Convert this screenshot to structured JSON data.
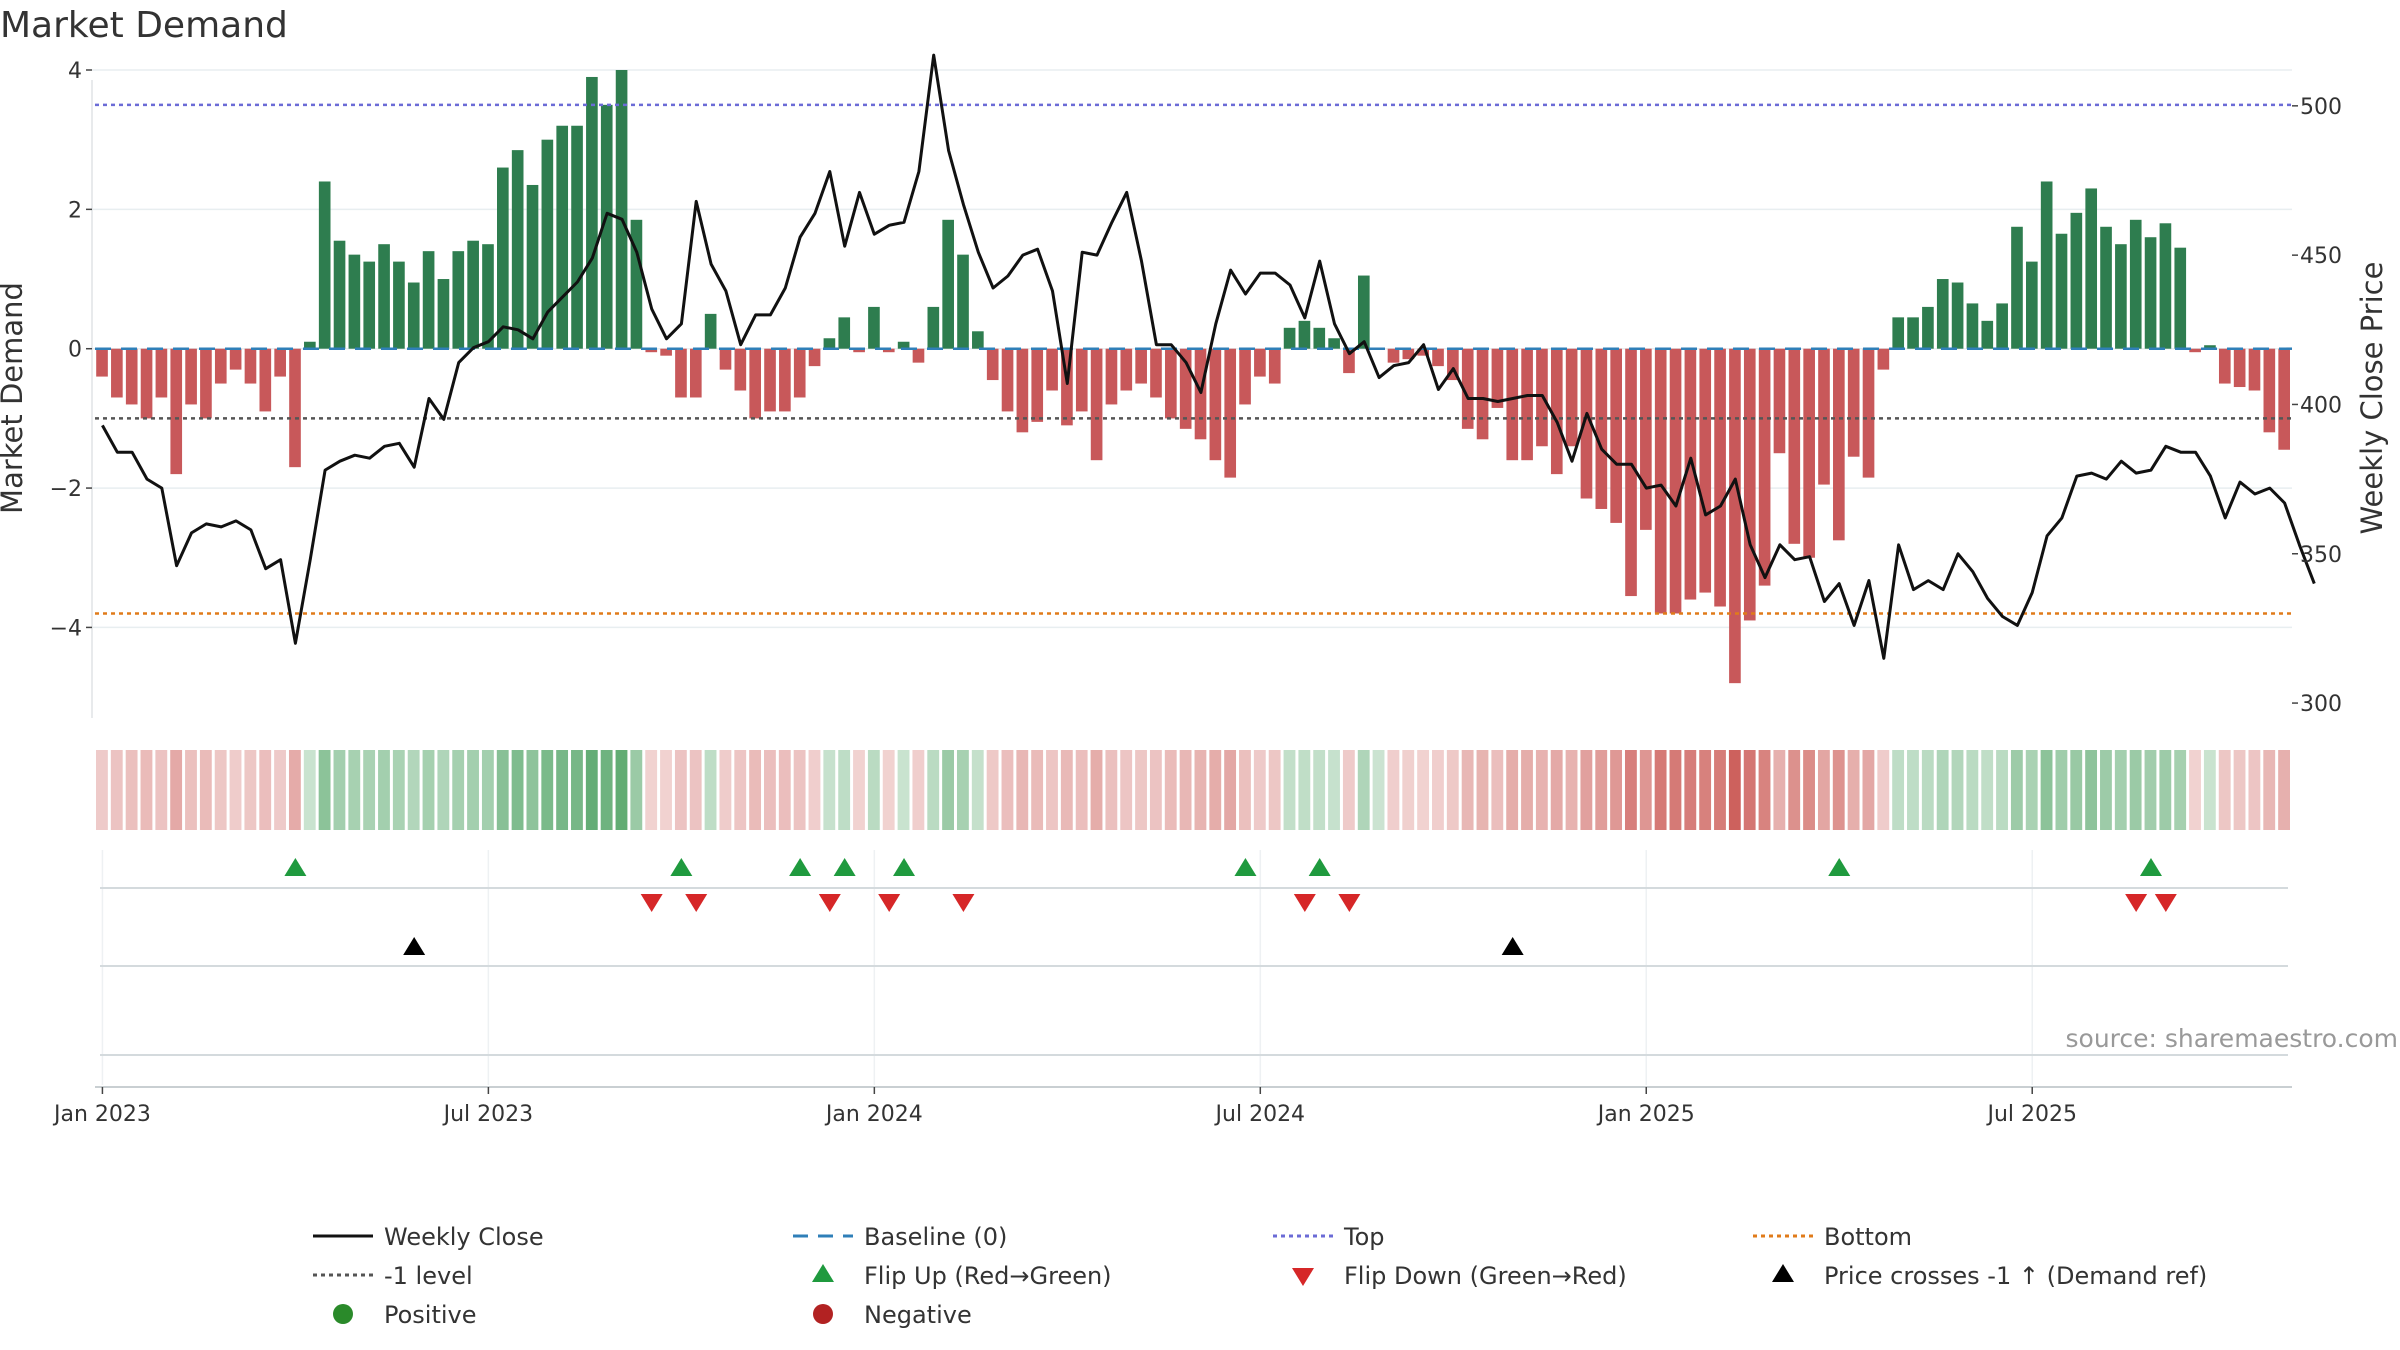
{
  "chart_data": {
    "type": "bar+line",
    "title": "Market Demand",
    "ylabel_left": "Market Demand",
    "ylabel_right": "Weekly Close Price",
    "source": "source: sharemaestro.com",
    "y_left_ticks": [
      "4",
      "2",
      "0",
      "−2",
      "−4"
    ],
    "y_left_tick_values": [
      4,
      2,
      0,
      -2,
      -4
    ],
    "y_left_range": [
      -5.3,
      4.0
    ],
    "y_right_ticks": [
      "500",
      "450",
      "400",
      "350",
      "300"
    ],
    "y_right_tick_values": [
      500,
      450,
      400,
      350,
      300
    ],
    "y_right_range": [
      295,
      512
    ],
    "x_ticks": [
      "Jan 2023",
      "Jul 2023",
      "Jan 2024",
      "Jul 2024",
      "Jan 2025",
      "Jul 2025"
    ],
    "x_tick_weeks": [
      0.5,
      26.5,
      52.5,
      78.5,
      104.5,
      130.5
    ],
    "reference_levels": {
      "top": 3.5,
      "minus_one": -1.0,
      "bottom": -3.8,
      "baseline": 0
    },
    "demand": [
      -0.4,
      -0.7,
      -0.8,
      -1.0,
      -0.7,
      -1.8,
      -0.8,
      -1.0,
      -0.5,
      -0.3,
      -0.5,
      -0.9,
      -0.4,
      -1.7,
      0.1,
      2.4,
      1.55,
      1.35,
      1.25,
      1.5,
      1.25,
      0.95,
      1.4,
      1.0,
      1.4,
      1.55,
      1.5,
      2.6,
      2.85,
      2.35,
      3.0,
      3.2,
      3.2,
      3.9,
      3.5,
      4.0,
      1.85,
      -0.05,
      -0.1,
      -0.7,
      -0.7,
      0.5,
      -0.3,
      -0.6,
      -1.0,
      -0.9,
      -0.9,
      -0.7,
      -0.25,
      0.15,
      0.45,
      -0.05,
      0.6,
      -0.05,
      0.1,
      -0.2,
      0.6,
      1.85,
      1.35,
      0.25,
      -0.45,
      -0.9,
      -1.2,
      -1.05,
      -0.6,
      -1.1,
      -0.9,
      -1.6,
      -0.8,
      -0.6,
      -0.5,
      -0.7,
      -1.0,
      -1.15,
      -1.3,
      -1.6,
      -1.85,
      -0.8,
      -0.4,
      -0.5,
      0.3,
      0.4,
      0.3,
      0.15,
      -0.35,
      1.05,
      0.0,
      -0.2,
      -0.15,
      -0.1,
      -0.25,
      -0.45,
      -1.15,
      -1.3,
      -0.85,
      -1.6,
      -1.6,
      -1.4,
      -1.8,
      -1.4,
      -2.15,
      -2.3,
      -2.5,
      -3.55,
      -2.6,
      -3.8,
      -3.8,
      -3.6,
      -3.5,
      -3.7,
      -4.8,
      -3.9,
      -3.4,
      -1.5,
      -2.8,
      -3.0,
      -1.95,
      -2.75,
      -1.55,
      -1.85,
      -0.3,
      0.45,
      0.45,
      0.6,
      1.0,
      0.95,
      0.65,
      0.4,
      0.65,
      1.75,
      1.25,
      2.4,
      1.65,
      1.95,
      2.3,
      1.75,
      1.5,
      1.85,
      1.6,
      1.8,
      1.45,
      -0.05,
      0.05,
      -0.5,
      -0.55,
      -0.6,
      -1.2,
      -1.45
    ],
    "weekly_close": [
      393,
      384,
      384,
      375,
      372,
      346,
      357,
      360,
      359,
      361,
      358,
      345,
      348,
      320,
      348,
      378,
      381,
      383,
      382,
      386,
      387,
      379,
      402,
      395,
      414,
      419,
      421,
      426,
      425,
      422,
      431,
      436,
      441,
      449,
      464,
      462,
      451,
      432,
      422,
      427,
      468,
      447,
      438,
      420,
      430,
      430,
      439,
      456,
      464,
      478,
      453,
      471,
      457,
      460,
      461,
      478,
      517,
      485,
      467,
      451,
      439,
      443,
      450,
      452,
      438,
      407,
      451,
      450,
      461,
      471,
      448,
      420,
      420,
      414,
      404,
      427,
      445,
      437,
      444,
      444,
      440,
      429,
      448,
      427,
      417,
      421,
      409,
      413,
      414,
      420,
      405,
      412,
      402,
      402,
      401,
      402,
      403,
      403,
      394,
      381,
      397,
      385,
      380,
      380,
      372,
      373,
      366,
      382,
      363,
      366,
      375,
      353,
      342,
      353,
      348,
      349,
      334,
      340,
      326,
      341,
      315,
      353,
      338,
      341,
      338,
      350,
      344,
      335,
      329,
      326,
      337,
      356,
      362,
      376,
      377,
      375,
      381,
      377,
      378,
      386,
      384,
      384,
      376,
      362,
      374,
      370,
      372,
      367,
      353,
      340
    ],
    "flip_up_weeks": [
      13.5,
      39.5,
      47.5,
      50.5,
      54.5,
      77.5,
      82.5,
      117.5,
      138.5
    ],
    "flip_down_weeks": [
      37.5,
      40.5,
      49.5,
      53.5,
      58.5,
      81.5,
      84.5,
      137.5,
      139.5
    ],
    "price_cross_weeks": [
      21.5,
      95.5
    ],
    "colors": {
      "positive": "#2e7d4f",
      "negative": "#c8585a",
      "price": "#111111",
      "top": "#6b6bd6",
      "bottom": "#e07b1a",
      "minus_one": "#555555",
      "baseline": "#2f7fb8",
      "flip_up": "#1f9a3e",
      "flip_down": "#d62728",
      "cross": "#000000"
    },
    "legend": [
      {
        "label": "Weekly Close",
        "kind": "line-solid",
        "color": "#111111"
      },
      {
        "label": "Baseline (0)",
        "kind": "line-dash",
        "color": "#2f7fb8"
      },
      {
        "label": "Top",
        "kind": "line-dot",
        "color": "#6b6bd6"
      },
      {
        "label": "Bottom",
        "kind": "line-dot",
        "color": "#e07b1a"
      },
      {
        "label": "-1 level",
        "kind": "line-dot",
        "color": "#555555"
      },
      {
        "label": "Flip Up (Red→Green)",
        "kind": "tri-up",
        "color": "#1f9a3e"
      },
      {
        "label": "Flip Down (Green→Red)",
        "kind": "tri-down",
        "color": "#d62728"
      },
      {
        "label": "Price crosses -1 ↑ (Demand ref)",
        "kind": "tri-up",
        "color": "#000000"
      },
      {
        "label": "Positive",
        "kind": "dot",
        "color": "#2a8a2a"
      },
      {
        "label": "Negative",
        "kind": "dot",
        "color": "#b22222"
      }
    ]
  }
}
